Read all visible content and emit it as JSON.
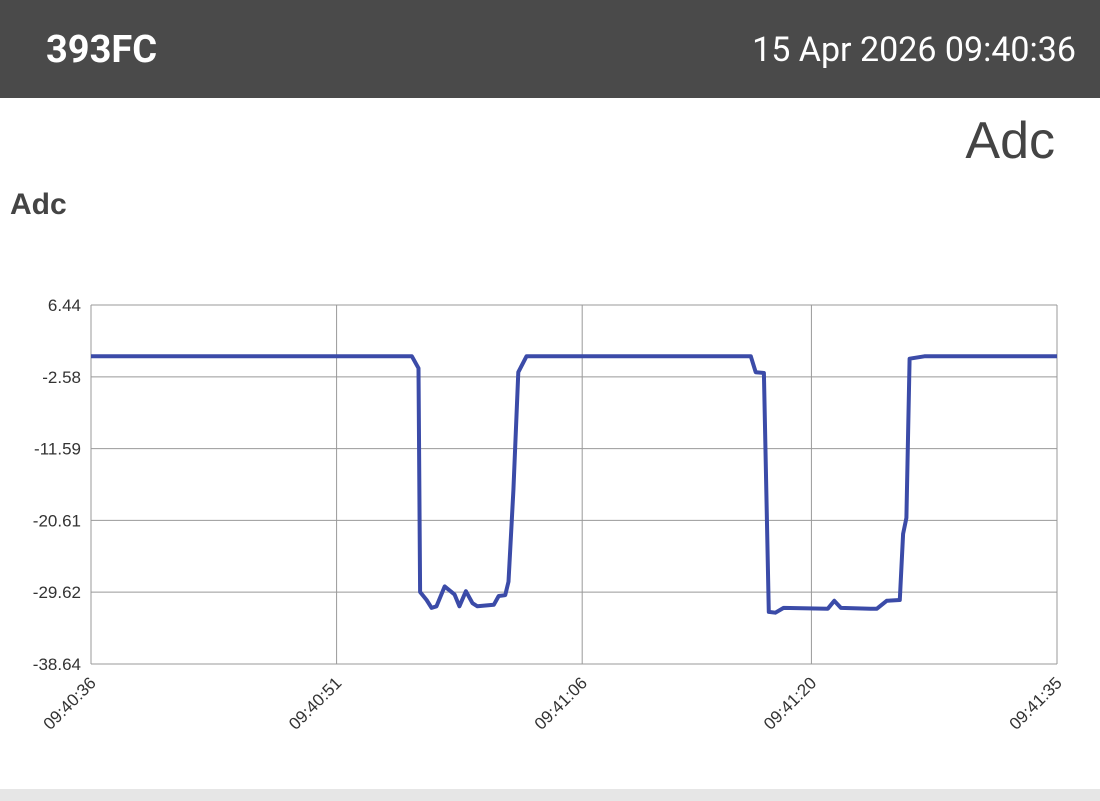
{
  "header": {
    "device": "393FC",
    "timestamp": "15 Apr 2026 09:40:36"
  },
  "chart_data": {
    "type": "line",
    "title": "Adc",
    "y_label": "Adc",
    "x": [
      0,
      19.6,
      20.0,
      20.1,
      20.5,
      20.8,
      21.1,
      21.6,
      21.9,
      22.2,
      22.5,
      22.9,
      23.3,
      23.6,
      24.6,
      24.9,
      25.3,
      25.5,
      25.8,
      26.1,
      26.6,
      40.3,
      40.6,
      41.1,
      41.4,
      41.8,
      42.3,
      45.0,
      45.4,
      45.8,
      47.6,
      48.0,
      48.6,
      49.4,
      49.6,
      49.8,
      50.0,
      50.9,
      59
    ],
    "series": [
      {
        "name": "Adc",
        "color": "#3b4ba8",
        "values": [
          0,
          0,
          -1.5,
          -29.6,
          -30.6,
          -31.6,
          -31.4,
          -28.9,
          -29.4,
          -29.9,
          -31.4,
          -29.5,
          -31.0,
          -31.4,
          -31.2,
          -30.1,
          -30.0,
          -28.3,
          -16.8,
          -2.0,
          0,
          0,
          -2.0,
          -2.1,
          -32.1,
          -32.2,
          -31.6,
          -31.7,
          -30.7,
          -31.6,
          -31.7,
          -31.7,
          -30.7,
          -30.6,
          -22.3,
          -20.3,
          -0.3,
          0,
          0
        ]
      }
    ],
    "xlim": [
      0,
      59
    ],
    "xticks": [
      {
        "value": 0,
        "label": "09:40:36"
      },
      {
        "value": 15,
        "label": "09:40:51"
      },
      {
        "value": 30,
        "label": "09:41:06"
      },
      {
        "value": 44,
        "label": "09:41:20"
      },
      {
        "value": 59,
        "label": "09:41:35"
      }
    ],
    "ylim": [
      -38.64,
      6.44
    ],
    "yticks": [
      6.44,
      -2.58,
      -11.59,
      -20.61,
      -29.62,
      -38.64
    ],
    "grid": true
  }
}
